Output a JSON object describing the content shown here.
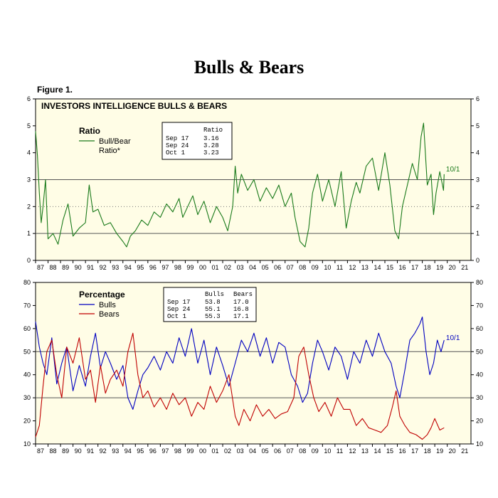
{
  "page": {
    "title": "Bulls & Bears",
    "figure_label": "Figure 1."
  },
  "chart_data": [
    {
      "type": "line",
      "title": "INVESTORS INTELLIGENCE BULLS & BEARS",
      "legend_title": "Ratio",
      "legend_entries": [
        "Bull/Bear",
        "Ratio*"
      ],
      "ylim": [
        0,
        6
      ],
      "y_ticks": [
        0,
        1,
        2,
        3,
        4,
        5,
        6
      ],
      "x_tick_labels": [
        "87",
        "88",
        "89",
        "90",
        "91",
        "92",
        "93",
        "94",
        "95",
        "96",
        "97",
        "98",
        "99",
        "00",
        "01",
        "02",
        "03",
        "04",
        "05",
        "06",
        "07",
        "08",
        "09",
        "10",
        "11",
        "12",
        "13",
        "14",
        "15",
        "16",
        "17",
        "18",
        "19",
        "20",
        "21"
      ],
      "x_range": [
        1987,
        2021.9
      ],
      "reference_lines": [
        3,
        1
      ],
      "reference_dotted": [
        2
      ],
      "end_label": "10/1",
      "series": [
        {
          "name": "Bull/Bear Ratio*",
          "color": "#1a7a1a",
          "x": [
            1987.0,
            1987.15,
            1987.3,
            1987.45,
            1987.6,
            1987.8,
            1988.0,
            1988.4,
            1988.8,
            1989.2,
            1989.6,
            1990.0,
            1990.5,
            1991.0,
            1991.3,
            1991.6,
            1992.0,
            1992.5,
            1993.0,
            1993.5,
            1994.0,
            1994.3,
            1994.6,
            1995.0,
            1995.5,
            1996.0,
            1996.5,
            1997.0,
            1997.5,
            1998.0,
            1998.5,
            1998.8,
            1999.2,
            1999.6,
            2000.0,
            2000.5,
            2001.0,
            2001.5,
            2002.0,
            2002.4,
            2002.8,
            2003.0,
            2003.2,
            2003.5,
            2004.0,
            2004.5,
            2005.0,
            2005.5,
            2006.0,
            2006.5,
            2007.0,
            2007.5,
            2007.8,
            2008.2,
            2008.6,
            2008.9,
            2009.2,
            2009.6,
            2010.0,
            2010.5,
            2011.0,
            2011.5,
            2011.9,
            2012.3,
            2012.7,
            2013.0,
            2013.5,
            2014.0,
            2014.5,
            2015.0,
            2015.4,
            2015.8,
            2016.1,
            2016.4,
            2016.8,
            2017.2,
            2017.6,
            2017.9,
            2018.1,
            2018.4,
            2018.7,
            2018.9,
            2019.1,
            2019.4,
            2019.7,
            2019.75
          ],
          "y": [
            4.8,
            3.9,
            2.5,
            1.4,
            2.0,
            3.0,
            0.8,
            1.0,
            0.6,
            1.5,
            2.1,
            0.9,
            1.2,
            1.4,
            2.8,
            1.8,
            1.9,
            1.3,
            1.4,
            1.0,
            0.7,
            0.5,
            0.9,
            1.1,
            1.5,
            1.3,
            1.8,
            1.6,
            2.1,
            1.8,
            2.3,
            1.6,
            2.0,
            2.4,
            1.7,
            2.2,
            1.4,
            2.0,
            1.6,
            1.1,
            2.0,
            3.5,
            2.5,
            3.2,
            2.6,
            3.0,
            2.2,
            2.7,
            2.3,
            2.8,
            2.0,
            2.5,
            1.6,
            0.7,
            0.5,
            1.2,
            2.5,
            3.2,
            2.2,
            3.0,
            2.0,
            3.3,
            1.2,
            2.2,
            2.9,
            2.5,
            3.5,
            3.8,
            2.6,
            4.0,
            2.8,
            1.1,
            0.8,
            2.0,
            2.8,
            3.6,
            3.0,
            4.6,
            5.1,
            2.8,
            3.2,
            1.7,
            2.5,
            3.3,
            2.6,
            3.2
          ]
        }
      ],
      "table": {
        "header": "Ratio",
        "rows": [
          [
            "Sep 17",
            "3.16"
          ],
          [
            "Sep 24",
            "3.28"
          ],
          [
            "Oct  1",
            "3.23"
          ]
        ]
      }
    },
    {
      "type": "line",
      "title": "",
      "legend_title": "Percentage",
      "legend_entries": [
        "Bulls",
        "Bears"
      ],
      "ylim": [
        10,
        80
      ],
      "y_ticks": [
        10,
        20,
        30,
        40,
        50,
        60,
        70,
        80
      ],
      "x_tick_labels": [
        "87",
        "88",
        "89",
        "90",
        "91",
        "92",
        "93",
        "94",
        "95",
        "96",
        "97",
        "98",
        "99",
        "00",
        "01",
        "02",
        "03",
        "04",
        "05",
        "06",
        "07",
        "08",
        "09",
        "10",
        "11",
        "12",
        "13",
        "14",
        "15",
        "16",
        "17",
        "18",
        "19",
        "20",
        "21"
      ],
      "x_range": [
        1987,
        2021.9
      ],
      "reference_lines": [
        50,
        30
      ],
      "end_label": "10/1",
      "series": [
        {
          "name": "Bulls",
          "color": "#0000c0",
          "x": [
            1987.0,
            1987.3,
            1987.6,
            1987.9,
            1988.3,
            1988.7,
            1989.1,
            1989.5,
            1990.0,
            1990.5,
            1991.0,
            1991.4,
            1991.8,
            1992.2,
            1992.6,
            1993.0,
            1993.5,
            1994.0,
            1994.4,
            1994.8,
            1995.2,
            1995.6,
            1996.0,
            1996.5,
            1997.0,
            1997.5,
            1998.0,
            1998.5,
            1999.0,
            1999.5,
            2000.0,
            2000.5,
            2001.0,
            2001.5,
            2002.0,
            2002.5,
            2003.0,
            2003.5,
            2004.0,
            2004.5,
            2005.0,
            2005.5,
            2006.0,
            2006.5,
            2007.0,
            2007.5,
            2008.0,
            2008.4,
            2008.8,
            2009.2,
            2009.6,
            2010.0,
            2010.5,
            2011.0,
            2011.5,
            2012.0,
            2012.5,
            2013.0,
            2013.5,
            2014.0,
            2014.5,
            2015.0,
            2015.5,
            2015.9,
            2016.2,
            2016.6,
            2017.0,
            2017.4,
            2017.8,
            2018.0,
            2018.3,
            2018.6,
            2018.9,
            2019.2,
            2019.5,
            2019.75
          ],
          "y": [
            63,
            52,
            45,
            40,
            56,
            36,
            45,
            52,
            33,
            44,
            35,
            48,
            58,
            43,
            50,
            45,
            38,
            44,
            30,
            25,
            33,
            40,
            43,
            48,
            42,
            50,
            45,
            56,
            48,
            60,
            45,
            55,
            40,
            52,
            44,
            35,
            45,
            55,
            50,
            58,
            48,
            56,
            45,
            54,
            52,
            40,
            35,
            28,
            32,
            45,
            55,
            50,
            42,
            52,
            48,
            38,
            50,
            45,
            55,
            48,
            58,
            50,
            45,
            35,
            30,
            42,
            55,
            58,
            62,
            65,
            50,
            40,
            45,
            55,
            50,
            55
          ]
        },
        {
          "name": "Bears",
          "color": "#c00000",
          "x": [
            1987.0,
            1987.3,
            1987.6,
            1987.9,
            1988.3,
            1988.7,
            1989.1,
            1989.5,
            1990.0,
            1990.5,
            1991.0,
            1991.4,
            1991.8,
            1992.2,
            1992.6,
            1993.0,
            1993.5,
            1994.0,
            1994.4,
            1994.8,
            1995.2,
            1995.6,
            1996.0,
            1996.5,
            1997.0,
            1997.5,
            1998.0,
            1998.5,
            1999.0,
            1999.5,
            2000.0,
            2000.5,
            2001.0,
            2001.5,
            2002.0,
            2002.5,
            2003.0,
            2003.3,
            2003.7,
            2004.2,
            2004.7,
            2005.2,
            2005.7,
            2006.2,
            2006.7,
            2007.2,
            2007.7,
            2008.1,
            2008.5,
            2008.9,
            2009.3,
            2009.7,
            2010.2,
            2010.7,
            2011.2,
            2011.7,
            2012.2,
            2012.7,
            2013.2,
            2013.7,
            2014.2,
            2014.7,
            2015.2,
            2015.6,
            2015.9,
            2016.2,
            2016.6,
            2017.0,
            2017.5,
            2018.0,
            2018.4,
            2018.7,
            2019.0,
            2019.4,
            2019.75
          ],
          "y": [
            13,
            18,
            35,
            50,
            55,
            40,
            30,
            52,
            45,
            56,
            38,
            42,
            28,
            44,
            32,
            38,
            42,
            35,
            50,
            58,
            40,
            30,
            33,
            26,
            30,
            25,
            32,
            27,
            30,
            22,
            28,
            25,
            35,
            28,
            33,
            40,
            22,
            18,
            25,
            20,
            27,
            22,
            25,
            21,
            23,
            24,
            30,
            48,
            52,
            40,
            30,
            24,
            28,
            22,
            30,
            25,
            25,
            18,
            21,
            17,
            16,
            15,
            18,
            26,
            33,
            22,
            18,
            15,
            14,
            12,
            14,
            17,
            21,
            16,
            17
          ]
        }
      ],
      "table": {
        "headers": [
          "Bulls",
          "Bears"
        ],
        "rows": [
          [
            "Sep 17",
            "53.8",
            "17.0"
          ],
          [
            "Sep 24",
            "55.1",
            "16.8"
          ],
          [
            "Oct  1",
            "55.3",
            "17.1"
          ]
        ]
      }
    }
  ]
}
